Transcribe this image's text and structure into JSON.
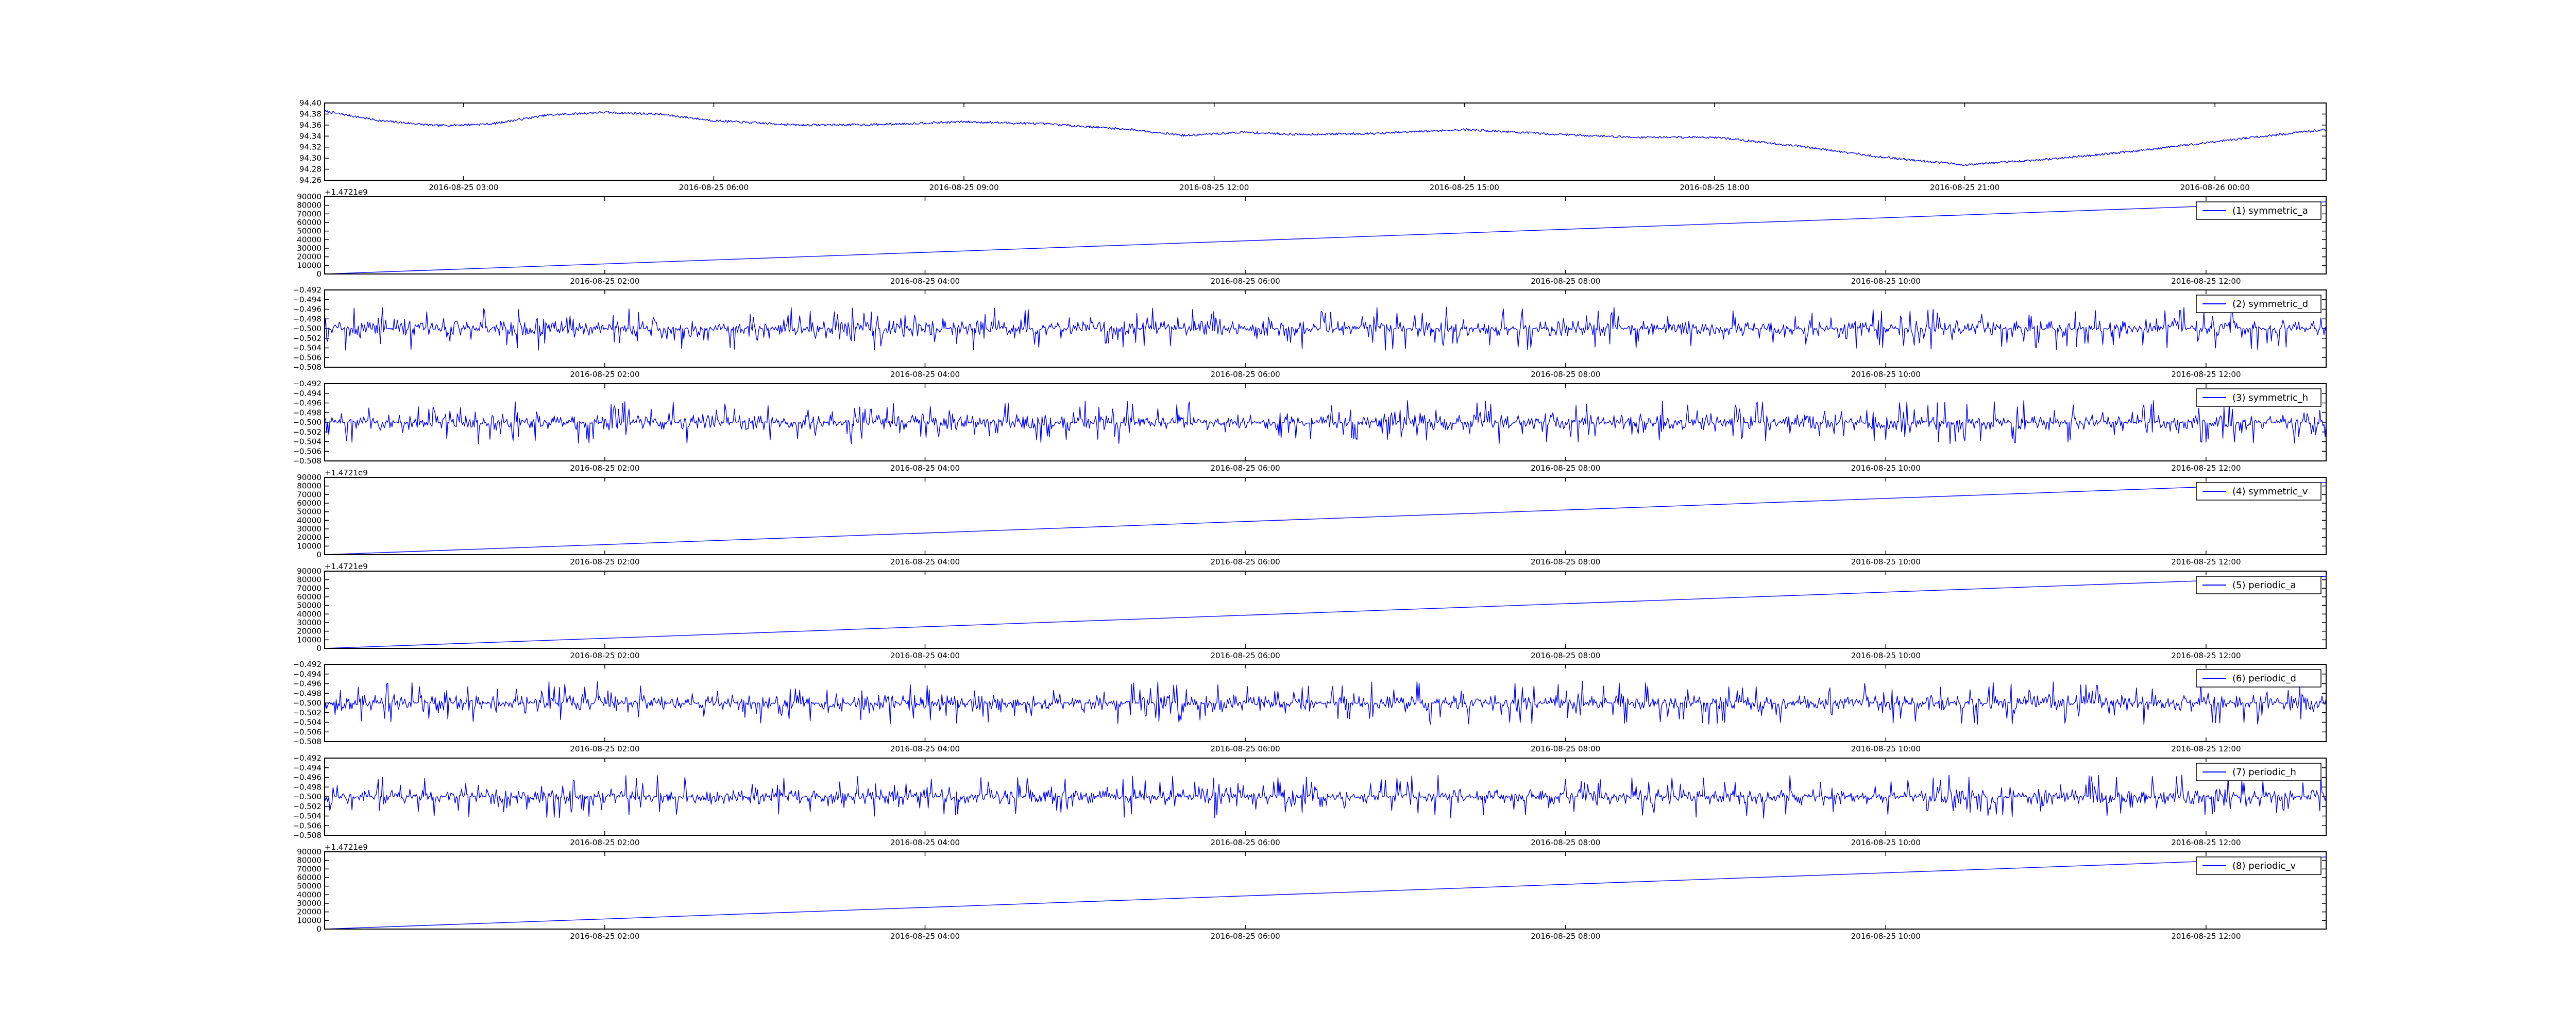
{
  "colors": {
    "line": "#0000ff",
    "axes": "#000000",
    "background": "#ffffff"
  },
  "chart_data": [
    {
      "type": "line",
      "title": "",
      "xlabel": "",
      "ylabel": "",
      "ylim": [
        94.26,
        94.4
      ],
      "yticks": [
        "94.26",
        "94.28",
        "94.30",
        "94.32",
        "94.34",
        "94.36",
        "94.38",
        "94.40"
      ],
      "xtick_labels": [
        "2016-08-25 03:00",
        "2016-08-25 06:00",
        "2016-08-25 09:00",
        "2016-08-25 12:00",
        "2016-08-25 15:00",
        "2016-08-25 18:00",
        "2016-08-25 21:00",
        "2016-08-26 00:00"
      ],
      "offset_text": "",
      "legend": null,
      "series": [
        {
          "x": [
            "2016-08-25 01:20",
            "2016-08-25 02:00",
            "2016-08-25 02:40",
            "2016-08-25 03:20",
            "2016-08-25 04:00",
            "2016-08-25 04:40",
            "2016-08-25 05:20",
            "2016-08-25 06:00",
            "2016-08-25 07:00",
            "2016-08-25 08:00",
            "2016-08-25 09:00",
            "2016-08-25 10:00",
            "2016-08-25 11:00",
            "2016-08-25 11:40",
            "2016-08-25 12:20",
            "2016-08-25 13:00",
            "2016-08-25 14:00",
            "2016-08-25 15:00",
            "2016-08-25 16:00",
            "2016-08-25 17:00",
            "2016-08-25 18:00",
            "2016-08-25 19:00",
            "2016-08-25 20:00",
            "2016-08-25 21:00",
            "2016-08-25 22:00",
            "2016-08-25 23:00",
            "2016-08-26 00:00",
            "2016-08-26 01:20"
          ],
          "values": [
            94.385,
            94.368,
            94.359,
            94.362,
            94.378,
            94.383,
            94.38,
            94.368,
            94.36,
            94.361,
            94.366,
            94.362,
            94.352,
            94.341,
            94.347,
            94.343,
            94.345,
            94.352,
            94.344,
            94.338,
            94.338,
            94.322,
            94.302,
            94.288,
            94.298,
            94.312,
            94.33,
            94.352
          ],
          "noise": 0.004
        }
      ]
    },
    {
      "type": "line",
      "title": "",
      "xlabel": "",
      "ylabel": "",
      "ylim": [
        0,
        90000
      ],
      "yticks": [
        "0",
        "10000",
        "20000",
        "30000",
        "40000",
        "50000",
        "60000",
        "70000",
        "80000",
        "90000"
      ],
      "xtick_labels": [
        "2016-08-25 02:00",
        "2016-08-25 04:00",
        "2016-08-25 06:00",
        "2016-08-25 08:00",
        "2016-08-25 10:00",
        "2016-08-25 12:00"
      ],
      "offset_text": "+1.4721e9",
      "legend": "(1) symmetric_a",
      "series": [
        {
          "name": "(1) symmetric_a",
          "x": [
            "2016-08-25 00:15",
            "2016-08-25 12:45"
          ],
          "values": [
            0,
            84000
          ]
        }
      ]
    },
    {
      "type": "line",
      "title": "",
      "xlabel": "",
      "ylabel": "",
      "ylim": [
        -0.508,
        -0.492
      ],
      "yticks": [
        "−0.508",
        "−0.506",
        "−0.504",
        "−0.502",
        "−0.500",
        "−0.498",
        "−0.496",
        "−0.494",
        "−0.492"
      ],
      "xtick_labels": [
        "2016-08-25 02:00",
        "2016-08-25 04:00",
        "2016-08-25 06:00",
        "2016-08-25 08:00",
        "2016-08-25 10:00",
        "2016-08-25 12:00"
      ],
      "offset_text": "",
      "legend": "(2) symmetric_d",
      "series": [
        {
          "name": "(2) symmetric_d",
          "x": [
            "2016-08-25 00:15",
            "2016-08-25 12:45"
          ],
          "values": [
            -0.5,
            -0.5
          ],
          "noise": 0.0045,
          "seed": 11
        }
      ]
    },
    {
      "type": "line",
      "title": "",
      "xlabel": "",
      "ylabel": "",
      "ylim": [
        -0.508,
        -0.492
      ],
      "yticks": [
        "−0.508",
        "−0.506",
        "−0.504",
        "−0.502",
        "−0.500",
        "−0.498",
        "−0.496",
        "−0.494",
        "−0.492"
      ],
      "xtick_labels": [
        "2016-08-25 02:00",
        "2016-08-25 04:00",
        "2016-08-25 06:00",
        "2016-08-25 08:00",
        "2016-08-25 10:00",
        "2016-08-25 12:00"
      ],
      "offset_text": "",
      "legend": "(3) symmetric_h",
      "series": [
        {
          "name": "(3) symmetric_h",
          "x": [
            "2016-08-25 00:15",
            "2016-08-25 12:45"
          ],
          "values": [
            -0.5,
            -0.5
          ],
          "noise": 0.0045,
          "seed": 23
        }
      ]
    },
    {
      "type": "line",
      "title": "",
      "xlabel": "",
      "ylabel": "",
      "ylim": [
        0,
        90000
      ],
      "yticks": [
        "0",
        "10000",
        "20000",
        "30000",
        "40000",
        "50000",
        "60000",
        "70000",
        "80000",
        "90000"
      ],
      "xtick_labels": [
        "2016-08-25 02:00",
        "2016-08-25 04:00",
        "2016-08-25 06:00",
        "2016-08-25 08:00",
        "2016-08-25 10:00",
        "2016-08-25 12:00"
      ],
      "offset_text": "+1.4721e9",
      "legend": "(4) symmetric_v",
      "series": [
        {
          "name": "(4) symmetric_v",
          "x": [
            "2016-08-25 00:15",
            "2016-08-25 12:45"
          ],
          "values": [
            0,
            84000
          ]
        }
      ]
    },
    {
      "type": "line",
      "title": "",
      "xlabel": "",
      "ylabel": "",
      "ylim": [
        0,
        90000
      ],
      "yticks": [
        "0",
        "10000",
        "20000",
        "30000",
        "40000",
        "50000",
        "60000",
        "70000",
        "80000",
        "90000"
      ],
      "xtick_labels": [
        "2016-08-25 02:00",
        "2016-08-25 04:00",
        "2016-08-25 06:00",
        "2016-08-25 08:00",
        "2016-08-25 10:00",
        "2016-08-25 12:00"
      ],
      "offset_text": "+1.4721e9",
      "legend": "(5) periodic_a",
      "series": [
        {
          "name": "(5) periodic_a",
          "x": [
            "2016-08-25 00:15",
            "2016-08-25 12:45"
          ],
          "values": [
            0,
            84000
          ]
        }
      ]
    },
    {
      "type": "line",
      "title": "",
      "xlabel": "",
      "ylabel": "",
      "ylim": [
        -0.508,
        -0.492
      ],
      "yticks": [
        "−0.508",
        "−0.506",
        "−0.504",
        "−0.502",
        "−0.500",
        "−0.498",
        "−0.496",
        "−0.494",
        "−0.492"
      ],
      "xtick_labels": [
        "2016-08-25 02:00",
        "2016-08-25 04:00",
        "2016-08-25 06:00",
        "2016-08-25 08:00",
        "2016-08-25 10:00",
        "2016-08-25 12:00"
      ],
      "offset_text": "",
      "legend": "(6) periodic_d",
      "series": [
        {
          "name": "(6) periodic_d",
          "x": [
            "2016-08-25 00:15",
            "2016-08-25 12:45"
          ],
          "values": [
            -0.5,
            -0.5
          ],
          "noise": 0.0045,
          "seed": 37
        }
      ]
    },
    {
      "type": "line",
      "title": "",
      "xlabel": "",
      "ylabel": "",
      "ylim": [
        -0.508,
        -0.492
      ],
      "yticks": [
        "−0.508",
        "−0.506",
        "−0.504",
        "−0.502",
        "−0.500",
        "−0.498",
        "−0.496",
        "−0.494",
        "−0.492"
      ],
      "xtick_labels": [
        "2016-08-25 02:00",
        "2016-08-25 04:00",
        "2016-08-25 06:00",
        "2016-08-25 08:00",
        "2016-08-25 10:00",
        "2016-08-25 12:00"
      ],
      "offset_text": "",
      "legend": "(7) periodic_h",
      "series": [
        {
          "name": "(7) periodic_h",
          "x": [
            "2016-08-25 00:15",
            "2016-08-25 12:45"
          ],
          "values": [
            -0.5,
            -0.5
          ],
          "noise": 0.0045,
          "seed": 53
        }
      ]
    },
    {
      "type": "line",
      "title": "",
      "xlabel": "",
      "ylabel": "",
      "ylim": [
        0,
        90000
      ],
      "yticks": [
        "0",
        "10000",
        "20000",
        "30000",
        "40000",
        "50000",
        "60000",
        "70000",
        "80000",
        "90000"
      ],
      "xtick_labels": [
        "2016-08-25 02:00",
        "2016-08-25 04:00",
        "2016-08-25 06:00",
        "2016-08-25 08:00",
        "2016-08-25 10:00",
        "2016-08-25 12:00"
      ],
      "offset_text": "+1.4721e9",
      "legend": "(8) periodic_v",
      "series": [
        {
          "name": "(8) periodic_v",
          "x": [
            "2016-08-25 00:15",
            "2016-08-25 12:45"
          ],
          "values": [
            0,
            84000
          ]
        }
      ]
    }
  ]
}
